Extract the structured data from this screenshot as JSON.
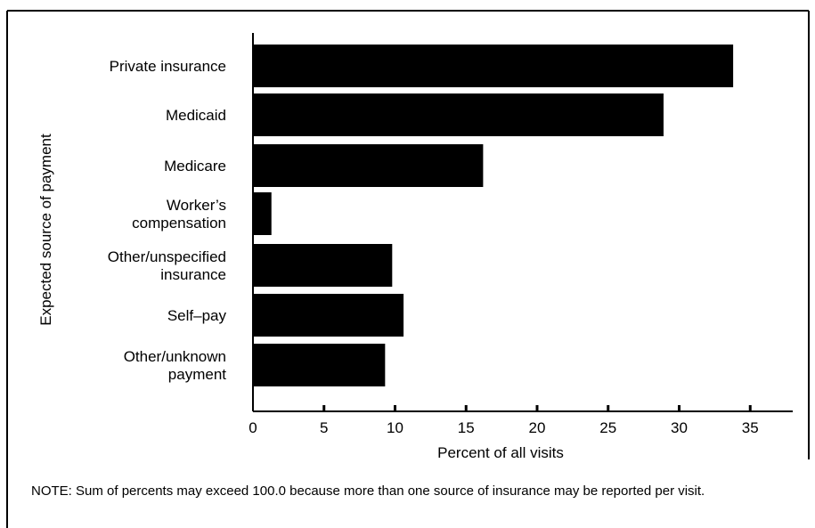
{
  "chart_data": {
    "type": "bar",
    "orientation": "horizontal",
    "categories": [
      [
        "Private insurance"
      ],
      [
        "Medicaid"
      ],
      [
        "Medicare"
      ],
      [
        "Worker’s",
        "compensation"
      ],
      [
        "Other/unspecified",
        "insurance"
      ],
      [
        "Self–pay"
      ],
      [
        "Other/unknown",
        "payment"
      ]
    ],
    "values": [
      33.8,
      28.9,
      16.2,
      1.3,
      9.8,
      10.6,
      9.3
    ],
    "xlabel": "Percent of all visits",
    "ylabel": "Expected source of payment",
    "xlim": [
      0,
      38
    ],
    "xticks": [
      0,
      5,
      10,
      15,
      20,
      25,
      30,
      35
    ],
    "bar_color": "#000000",
    "grid": false,
    "legend": "none"
  },
  "note": "NOTE: Sum of percents may exceed 100.0 because more than one source of insurance may be reported per visit."
}
